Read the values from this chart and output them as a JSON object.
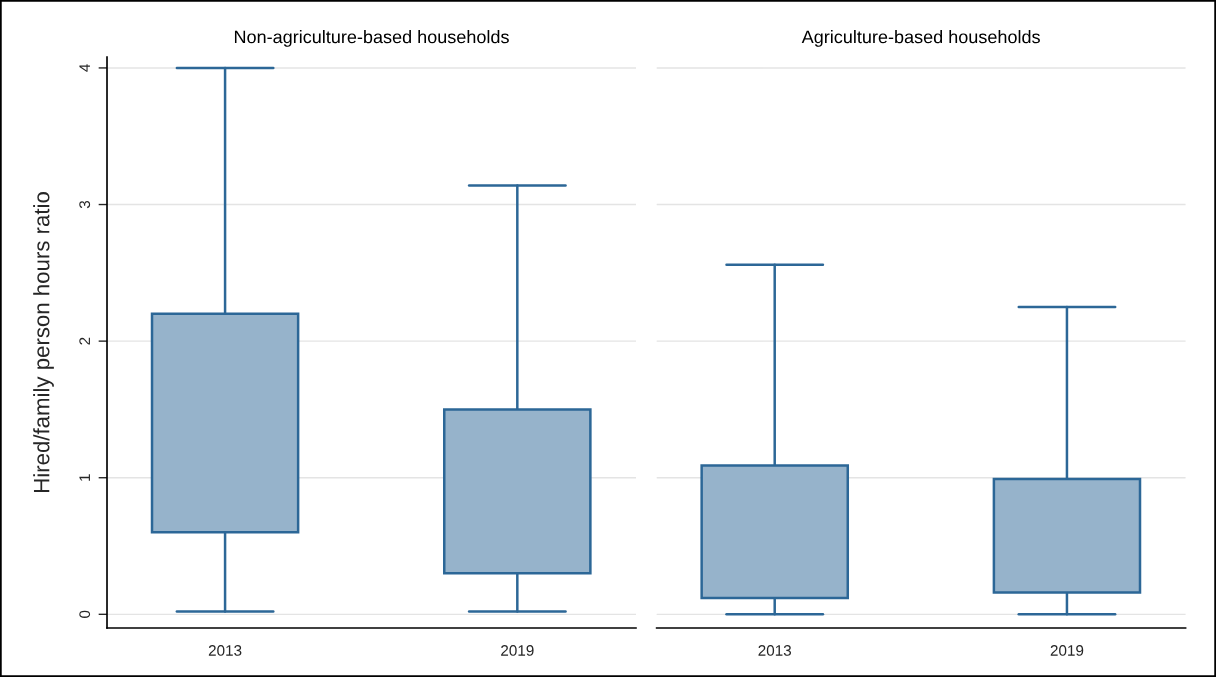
{
  "chart_data": [
    {
      "type": "box",
      "title": "Non-agriculture-based households",
      "ylabel": "Hired/family person hours ratio",
      "categories": [
        "2013",
        "2019"
      ],
      "series": [
        {
          "color": "#2c6797",
          "boxes": [
            {
              "low": 0.02,
              "q1": 0.6,
              "median": 1.0,
              "q3": 2.2,
              "high": 4.0
            },
            {
              "low": 0.02,
              "q1": 0.3,
              "median": 0.57,
              "q3": 1.5,
              "high": 3.14
            }
          ]
        }
      ],
      "ylim": [
        -0.1,
        4.08
      ],
      "yticks": [
        0,
        1,
        2,
        3,
        4
      ],
      "grid": "y"
    },
    {
      "type": "box",
      "title": "Agriculture-based households",
      "categories": [
        "2013",
        "2019"
      ],
      "series": [
        {
          "color": "#2c6797",
          "boxes": [
            {
              "low": 0,
              "q1": 0.12,
              "median": 0.4,
              "q3": 1.09,
              "high": 2.56
            },
            {
              "low": 0,
              "q1": 0.16,
              "median": 0.45,
              "q3": 0.99,
              "high": 2.25
            }
          ]
        }
      ],
      "yticks": [
        0,
        1,
        2,
        3,
        4
      ],
      "grid": "y",
      "tick_labels": "x"
    }
  ]
}
